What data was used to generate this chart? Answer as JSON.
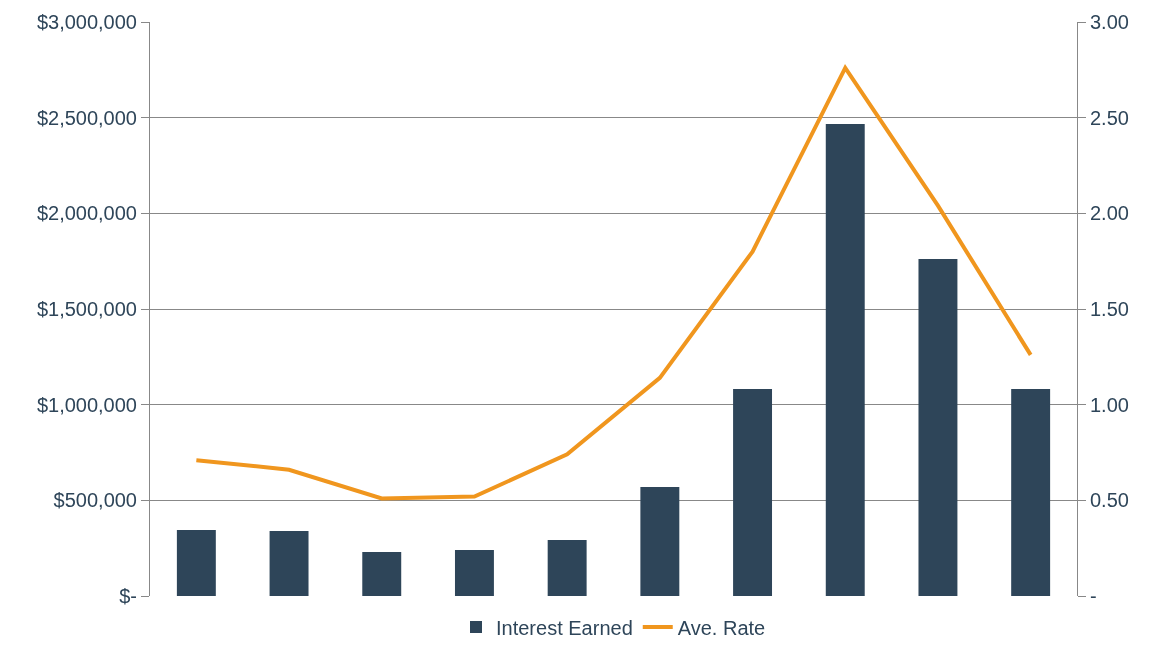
{
  "chart_data": {
    "type": "bar",
    "categories": [
      null,
      null,
      null,
      null,
      null,
      null,
      null,
      null,
      null,
      null
    ],
    "series": [
      {
        "name": "Interest Earned",
        "color": "#2e4559",
        "values": [
          345000,
          340000,
          230000,
          240000,
          293000,
          570000,
          1082000,
          2467000,
          1761000,
          1082000
        ]
      },
      {
        "name": "Ave. Rate",
        "type": "line",
        "axis": "y2",
        "color": "#f0961e",
        "marker": "none",
        "values": [
          0.71,
          0.66,
          0.51,
          0.52,
          0.74,
          1.14,
          1.8,
          2.76,
          2.04,
          1.26
        ]
      }
    ],
    "ylim": [
      0,
      3000000
    ],
    "yticks": [
      {
        "value": 0,
        "label": "$-"
      },
      {
        "value": 500000,
        "label": "$500,000"
      },
      {
        "value": 1000000,
        "label": "$1,000,000"
      },
      {
        "value": 1500000,
        "label": "$1,500,000"
      },
      {
        "value": 2000000,
        "label": "$2,000,000"
      },
      {
        "value": 2500000,
        "label": "$2,500,000"
      },
      {
        "value": 3000000,
        "label": "$3,000,000"
      }
    ],
    "y2lim": [
      0,
      3
    ],
    "y2ticks": [
      {
        "value": 0,
        "label": "-"
      },
      {
        "value": 0.5,
        "label": "0.50"
      },
      {
        "value": 1,
        "label": "1.00"
      },
      {
        "value": 1.5,
        "label": "1.50"
      },
      {
        "value": 2,
        "label": "2.00"
      },
      {
        "value": 2.5,
        "label": "2.50"
      },
      {
        "value": 3,
        "label": "3.00"
      }
    ],
    "grid": "y",
    "legend": "bottom"
  }
}
